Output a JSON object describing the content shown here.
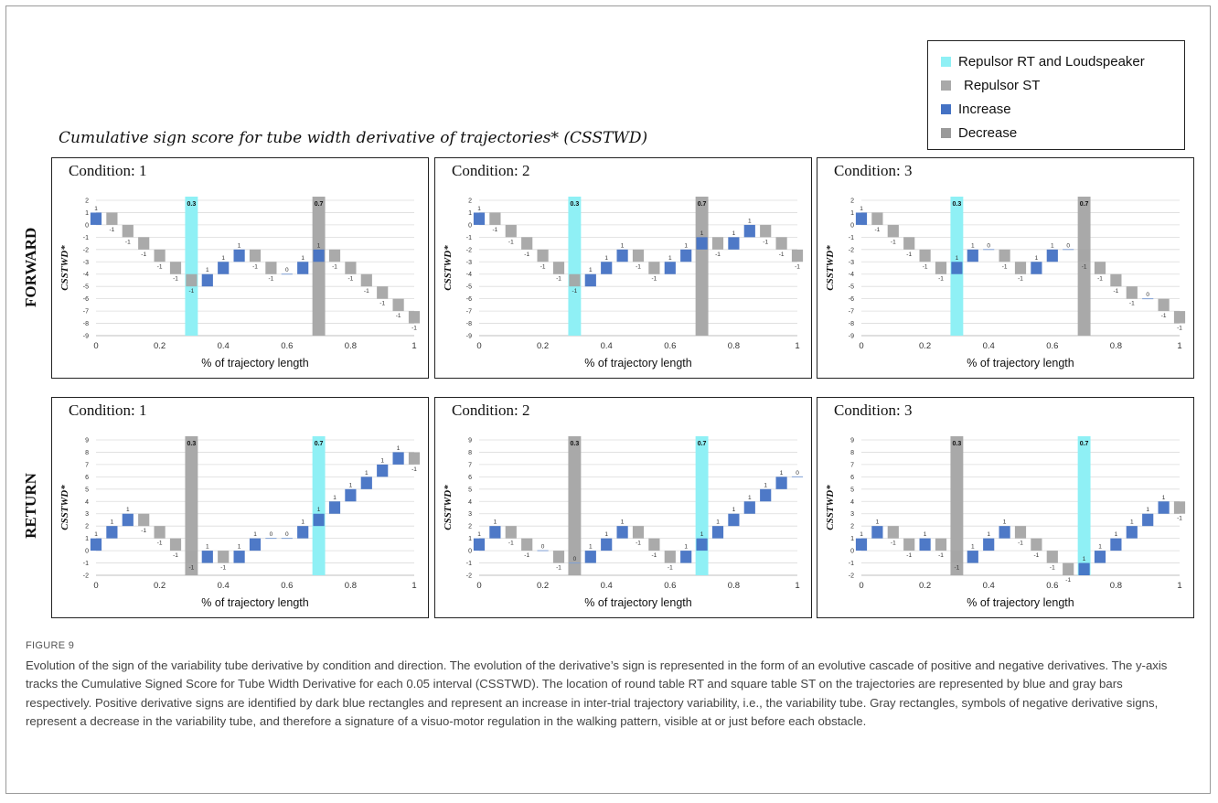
{
  "figure": {
    "title": "Cumulative sign score for tube width derivative of trajectories* (CSSTWD)",
    "row_labels": [
      "FORWARD",
      "RETURN"
    ],
    "caption_label": "FIGURE 9",
    "caption": "Evolution of the sign of the variability tube derivative by condition and direction. The evolution of the derivative’s sign is represented in the form of an evolutive cascade of positive and negative derivatives. The y-axis tracks the Cumulative Signed Score for Tube Width Derivative for each 0.05 interval (CSSTWD). The location of round table RT and square table ST on the trajectories are represented by blue and gray bars respectively. Positive derivative signs are identified by dark blue rectangles and represent an increase in inter-trial trajectory variability, i.e., the variability tube. Gray rectangles, symbols of negative derivative signs, represent a decrease in the variability tube, and therefore a signature of a visuo-motor regulation in the walking pattern, visible at or just before each obstacle."
  },
  "legend": {
    "items": [
      {
        "label": "Repulsor RT and Loudspeaker",
        "color": "#8ff0f5"
      },
      {
        "label": "Repulsor ST",
        "color": "#a9a9a9"
      },
      {
        "label": "Increase",
        "color": "#4472c4"
      },
      {
        "label": "Decrease",
        "color": "#9a9a9a"
      }
    ]
  },
  "colors": {
    "increase": "#4472c4",
    "decrease": "#a5a5a5",
    "rt": "#8ff0f5",
    "st": "#a9a9a9",
    "grid": "#dcdcdc"
  },
  "chart_data": [
    {
      "type": "bar",
      "subtype": "waterfall",
      "title": "Condition: 1",
      "direction": "FORWARD",
      "xlabel": "% of trajectory length",
      "ylabel": "CSSTWD*",
      "xlim": [
        0,
        1
      ],
      "xticks": [
        "0",
        "0.2",
        "0.4",
        "0.6",
        "0.8",
        "1"
      ],
      "ylim": [
        -9,
        2
      ],
      "yticks": [
        "2",
        "1",
        "0",
        "-1",
        "-2",
        "-3",
        "-4",
        "-5",
        "-6",
        "-7",
        "-8",
        "-9"
      ],
      "x": [
        0.0,
        0.05,
        0.1,
        0.15,
        0.2,
        0.25,
        0.3,
        0.35,
        0.4,
        0.45,
        0.5,
        0.55,
        0.6,
        0.65,
        0.7,
        0.75,
        0.8,
        0.85,
        0.9,
        0.95,
        1.0
      ],
      "signs": [
        1,
        -1,
        -1,
        -1,
        -1,
        -1,
        -1,
        1,
        1,
        1,
        -1,
        -1,
        0,
        1,
        1,
        -1,
        -1,
        -1,
        -1,
        -1,
        -1
      ],
      "cumulative": [
        1,
        0,
        -1,
        -2,
        -3,
        -4,
        -5,
        -4,
        -3,
        -2,
        -3,
        -4,
        -4,
        -3,
        -2,
        -3,
        -4,
        -5,
        -6,
        -7,
        -8
      ],
      "markers": [
        {
          "x": 0.3,
          "label": "0.3",
          "type": "rt"
        },
        {
          "x": 0.7,
          "label": "0.7",
          "type": "st"
        }
      ]
    },
    {
      "type": "bar",
      "subtype": "waterfall",
      "title": "Condition: 2",
      "direction": "FORWARD",
      "xlabel": "% of trajectory length",
      "ylabel": "CSSTWD*",
      "xlim": [
        0,
        1
      ],
      "xticks": [
        "0",
        "0.2",
        "0.4",
        "0.6",
        "0.8",
        "1"
      ],
      "ylim": [
        -9,
        2
      ],
      "yticks": [
        "2",
        "1",
        "0",
        "-1",
        "-2",
        "-3",
        "-4",
        "-5",
        "-6",
        "-7",
        "-8",
        "-9"
      ],
      "x": [
        0.0,
        0.05,
        0.1,
        0.15,
        0.2,
        0.25,
        0.3,
        0.35,
        0.4,
        0.45,
        0.5,
        0.55,
        0.6,
        0.65,
        0.7,
        0.75,
        0.8,
        0.85,
        0.9,
        0.95,
        1.0
      ],
      "signs": [
        1,
        -1,
        -1,
        -1,
        -1,
        -1,
        -1,
        1,
        1,
        1,
        -1,
        -1,
        1,
        1,
        1,
        -1,
        1,
        1,
        -1,
        -1,
        -1
      ],
      "cumulative": [
        1,
        0,
        -1,
        -2,
        -3,
        -4,
        -5,
        -4,
        -3,
        -2,
        -3,
        -4,
        -3,
        -2,
        -1,
        -2,
        -1,
        0,
        -1,
        -2,
        -3
      ],
      "markers": [
        {
          "x": 0.3,
          "label": "0.3",
          "type": "rt"
        },
        {
          "x": 0.7,
          "label": "0.7",
          "type": "st"
        }
      ]
    },
    {
      "type": "bar",
      "subtype": "waterfall",
      "title": "Condition: 3",
      "direction": "FORWARD",
      "xlabel": "% of trajectory length",
      "ylabel": "CSSTWD*",
      "xlim": [
        0,
        1
      ],
      "xticks": [
        "0",
        "0.2",
        "0.4",
        "0.6",
        "0.8",
        "1"
      ],
      "ylim": [
        -9,
        2
      ],
      "yticks": [
        "2",
        "1",
        "0",
        "-1",
        "-2",
        "-3",
        "-4",
        "-5",
        "-6",
        "-7",
        "-8",
        "-9"
      ],
      "x": [
        0.0,
        0.05,
        0.1,
        0.15,
        0.2,
        0.25,
        0.3,
        0.35,
        0.4,
        0.45,
        0.5,
        0.55,
        0.6,
        0.65,
        0.7,
        0.75,
        0.8,
        0.85,
        0.9,
        0.95,
        1.0
      ],
      "signs": [
        1,
        -1,
        -1,
        -1,
        -1,
        -1,
        1,
        1,
        0,
        -1,
        -1,
        1,
        1,
        0,
        -1,
        -1,
        -1,
        -1,
        0,
        -1,
        -1
      ],
      "cumulative": [
        1,
        0,
        -1,
        -2,
        -3,
        -4,
        -3,
        -2,
        -2,
        -3,
        -4,
        -3,
        -2,
        -2,
        -3,
        -4,
        -5,
        -6,
        -6,
        -7,
        -8
      ],
      "markers": [
        {
          "x": 0.3,
          "label": "0.3",
          "type": "rt"
        },
        {
          "x": 0.7,
          "label": "0.7",
          "type": "st"
        }
      ]
    },
    {
      "type": "bar",
      "subtype": "waterfall",
      "title": "Condition: 1",
      "direction": "RETURN",
      "xlabel": "% of trajectory length",
      "ylabel": "CSSTWD*",
      "xlim": [
        0,
        1
      ],
      "xticks": [
        "0",
        "0.2",
        "0.4",
        "0.6",
        "0.8",
        "1"
      ],
      "ylim": [
        -2,
        9
      ],
      "yticks": [
        "9",
        "8",
        "7",
        "6",
        "5",
        "4",
        "3",
        "2",
        "1",
        "0",
        "-1",
        "-2"
      ],
      "x": [
        0.0,
        0.05,
        0.1,
        0.15,
        0.2,
        0.25,
        0.3,
        0.35,
        0.4,
        0.45,
        0.5,
        0.55,
        0.6,
        0.65,
        0.7,
        0.75,
        0.8,
        0.85,
        0.9,
        0.95,
        1.0
      ],
      "signs": [
        1,
        1,
        1,
        -1,
        -1,
        -1,
        -1,
        1,
        -1,
        1,
        1,
        0,
        0,
        1,
        1,
        1,
        1,
        1,
        1,
        1,
        -1
      ],
      "cumulative": [
        1,
        2,
        3,
        2,
        1,
        0,
        -1,
        0,
        -1,
        0,
        1,
        1,
        1,
        2,
        3,
        4,
        5,
        6,
        7,
        8,
        7
      ],
      "markers": [
        {
          "x": 0.3,
          "label": "0.3",
          "type": "st"
        },
        {
          "x": 0.7,
          "label": "0.7",
          "type": "rt"
        }
      ]
    },
    {
      "type": "bar",
      "subtype": "waterfall",
      "title": "Condition: 2",
      "direction": "RETURN",
      "xlabel": "% of trajectory length",
      "ylabel": "CSSTWD*",
      "xlim": [
        0,
        1
      ],
      "xticks": [
        "0",
        "0.2",
        "0.4",
        "0.6",
        "0.8",
        "1"
      ],
      "ylim": [
        -2,
        9
      ],
      "yticks": [
        "9",
        "8",
        "7",
        "6",
        "5",
        "4",
        "3",
        "2",
        "1",
        "0",
        "-1",
        "-2"
      ],
      "x": [
        0.0,
        0.05,
        0.1,
        0.15,
        0.2,
        0.25,
        0.3,
        0.35,
        0.4,
        0.45,
        0.5,
        0.55,
        0.6,
        0.65,
        0.7,
        0.75,
        0.8,
        0.85,
        0.9,
        0.95,
        1.0
      ],
      "signs": [
        1,
        1,
        -1,
        -1,
        0,
        -1,
        0,
        1,
        1,
        1,
        -1,
        -1,
        -1,
        1,
        1,
        1,
        1,
        1,
        1,
        1,
        0
      ],
      "cumulative": [
        1,
        2,
        1,
        0,
        0,
        -1,
        -1,
        0,
        1,
        2,
        1,
        0,
        -1,
        0,
        1,
        2,
        3,
        4,
        5,
        6,
        6
      ],
      "markers": [
        {
          "x": 0.3,
          "label": "0.3",
          "type": "st"
        },
        {
          "x": 0.7,
          "label": "0.7",
          "type": "rt"
        }
      ]
    },
    {
      "type": "bar",
      "subtype": "waterfall",
      "title": "Condition: 3",
      "direction": "RETURN",
      "xlabel": "% of trajectory length",
      "ylabel": "CSSTWD*",
      "xlim": [
        0,
        1
      ],
      "xticks": [
        "0",
        "0.2",
        "0.4",
        "0.6",
        "0.8",
        "1"
      ],
      "ylim": [
        -2,
        9
      ],
      "yticks": [
        "9",
        "8",
        "7",
        "6",
        "5",
        "4",
        "3",
        "2",
        "1",
        "0",
        "-1",
        "-2"
      ],
      "x": [
        0.0,
        0.05,
        0.1,
        0.15,
        0.2,
        0.25,
        0.3,
        0.35,
        0.4,
        0.45,
        0.5,
        0.55,
        0.6,
        0.65,
        0.7,
        0.75,
        0.8,
        0.85,
        0.9,
        0.95,
        1.0
      ],
      "signs": [
        1,
        1,
        -1,
        -1,
        1,
        -1,
        -1,
        1,
        1,
        1,
        -1,
        -1,
        -1,
        -1,
        1,
        1,
        1,
        1,
        1,
        1,
        -1
      ],
      "cumulative": [
        1,
        2,
        1,
        0,
        1,
        0,
        -1,
        0,
        1,
        2,
        1,
        0,
        -1,
        -2,
        -1,
        0,
        1,
        2,
        3,
        4,
        3
      ],
      "markers": [
        {
          "x": 0.3,
          "label": "0.3",
          "type": "st"
        },
        {
          "x": 0.7,
          "label": "0.7",
          "type": "rt"
        }
      ]
    }
  ]
}
